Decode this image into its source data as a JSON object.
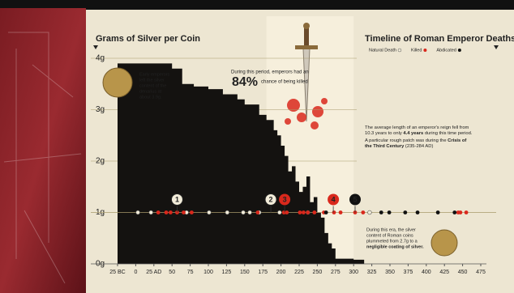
{
  "chart_data": {
    "type": "area",
    "title": "Grams of Silver per Coin",
    "timeline_title": "Timeline of Roman Emperor Deaths",
    "color": "#141210",
    "x": [
      -25,
      0,
      25,
      40,
      50,
      64,
      80,
      100,
      120,
      140,
      150,
      170,
      180,
      190,
      195,
      200,
      205,
      210,
      215,
      220,
      225,
      230,
      235,
      240,
      245,
      250,
      255,
      260,
      265,
      270,
      275,
      280,
      300,
      310
    ],
    "values": [
      3.9,
      3.9,
      3.9,
      3.9,
      3.8,
      3.5,
      3.45,
      3.4,
      3.3,
      3.2,
      3.1,
      2.9,
      2.8,
      2.6,
      2.5,
      2.3,
      2.1,
      1.8,
      1.9,
      1.6,
      1.4,
      1.5,
      1.7,
      1.2,
      1.3,
      1.0,
      0.9,
      0.6,
      0.4,
      0.3,
      0.1,
      0.1,
      0.08,
      0.08
    ],
    "xlim": [
      -25,
      475
    ],
    "xticks": [
      {
        "value": -25,
        "label": "25 BC"
      },
      0,
      {
        "value": 25,
        "label": "25 AD"
      },
      50,
      75,
      100,
      125,
      150,
      175,
      200,
      225,
      250,
      275,
      300,
      325,
      350,
      375,
      400,
      425,
      450,
      475
    ],
    "ylim": [
      0,
      4
    ],
    "yticks": [
      {
        "value": 0,
        "label": "0g"
      },
      {
        "value": 1,
        "label": "1g"
      },
      {
        "value": 2,
        "label": "2g"
      },
      {
        "value": 3,
        "label": "3g"
      },
      {
        "value": 4,
        "label": "4g"
      }
    ],
    "grid": true,
    "timeline_y": 1,
    "series": [
      {
        "name": "Natural Death",
        "color": "#f2ecd9",
        "x": [
          3,
          21,
          70,
          101,
          126,
          148,
          157,
          170,
          198,
          237,
          322
        ]
      },
      {
        "name": "Killed",
        "color": "#d9281c",
        "x": [
          31,
          42,
          48,
          57,
          66,
          77,
          168,
          204,
          208,
          226,
          231,
          237,
          246,
          259,
          273,
          282,
          302,
          313,
          444,
          447,
          455
        ]
      },
      {
        "name": "Abdicated",
        "color": "#111111",
        "x": [
          262,
          338,
          349,
          371,
          388,
          416,
          439
        ]
      }
    ],
    "markers": [
      {
        "label": "1",
        "x": 57,
        "color": "#f2ecd9"
      },
      {
        "label": "2",
        "x": 186,
        "color": "#f2ecd9"
      },
      {
        "label": "3",
        "x": 205,
        "color": "#d9281c"
      },
      {
        "label": "4",
        "x": 272,
        "color": "#d9281c"
      },
      {
        "label": "5",
        "x": 302,
        "color": "#111111"
      }
    ],
    "highlight_range": [
      180,
      300
    ],
    "annotations": {
      "early": [
        "Early emperors",
        "left the silver",
        "content of the",
        "denarius at",
        "about 3.9g."
      ],
      "period_pre": "During this period, emperors had an",
      "period_value": "84%",
      "period_post": "chance of being killed",
      "reign": [
        "The average length of an emperor's reign fell from",
        "10.3 years to only",
        "4.4 years",
        "during this time period."
      ],
      "crisis": [
        "A particular rough patch was during the",
        "Crisis of",
        "the Third Century",
        "(235-284 AD)"
      ],
      "era": [
        "During this era, the silver",
        "content of Roman coins",
        "plummeted from 2.7g to a",
        "negligible coating of silver."
      ]
    }
  }
}
